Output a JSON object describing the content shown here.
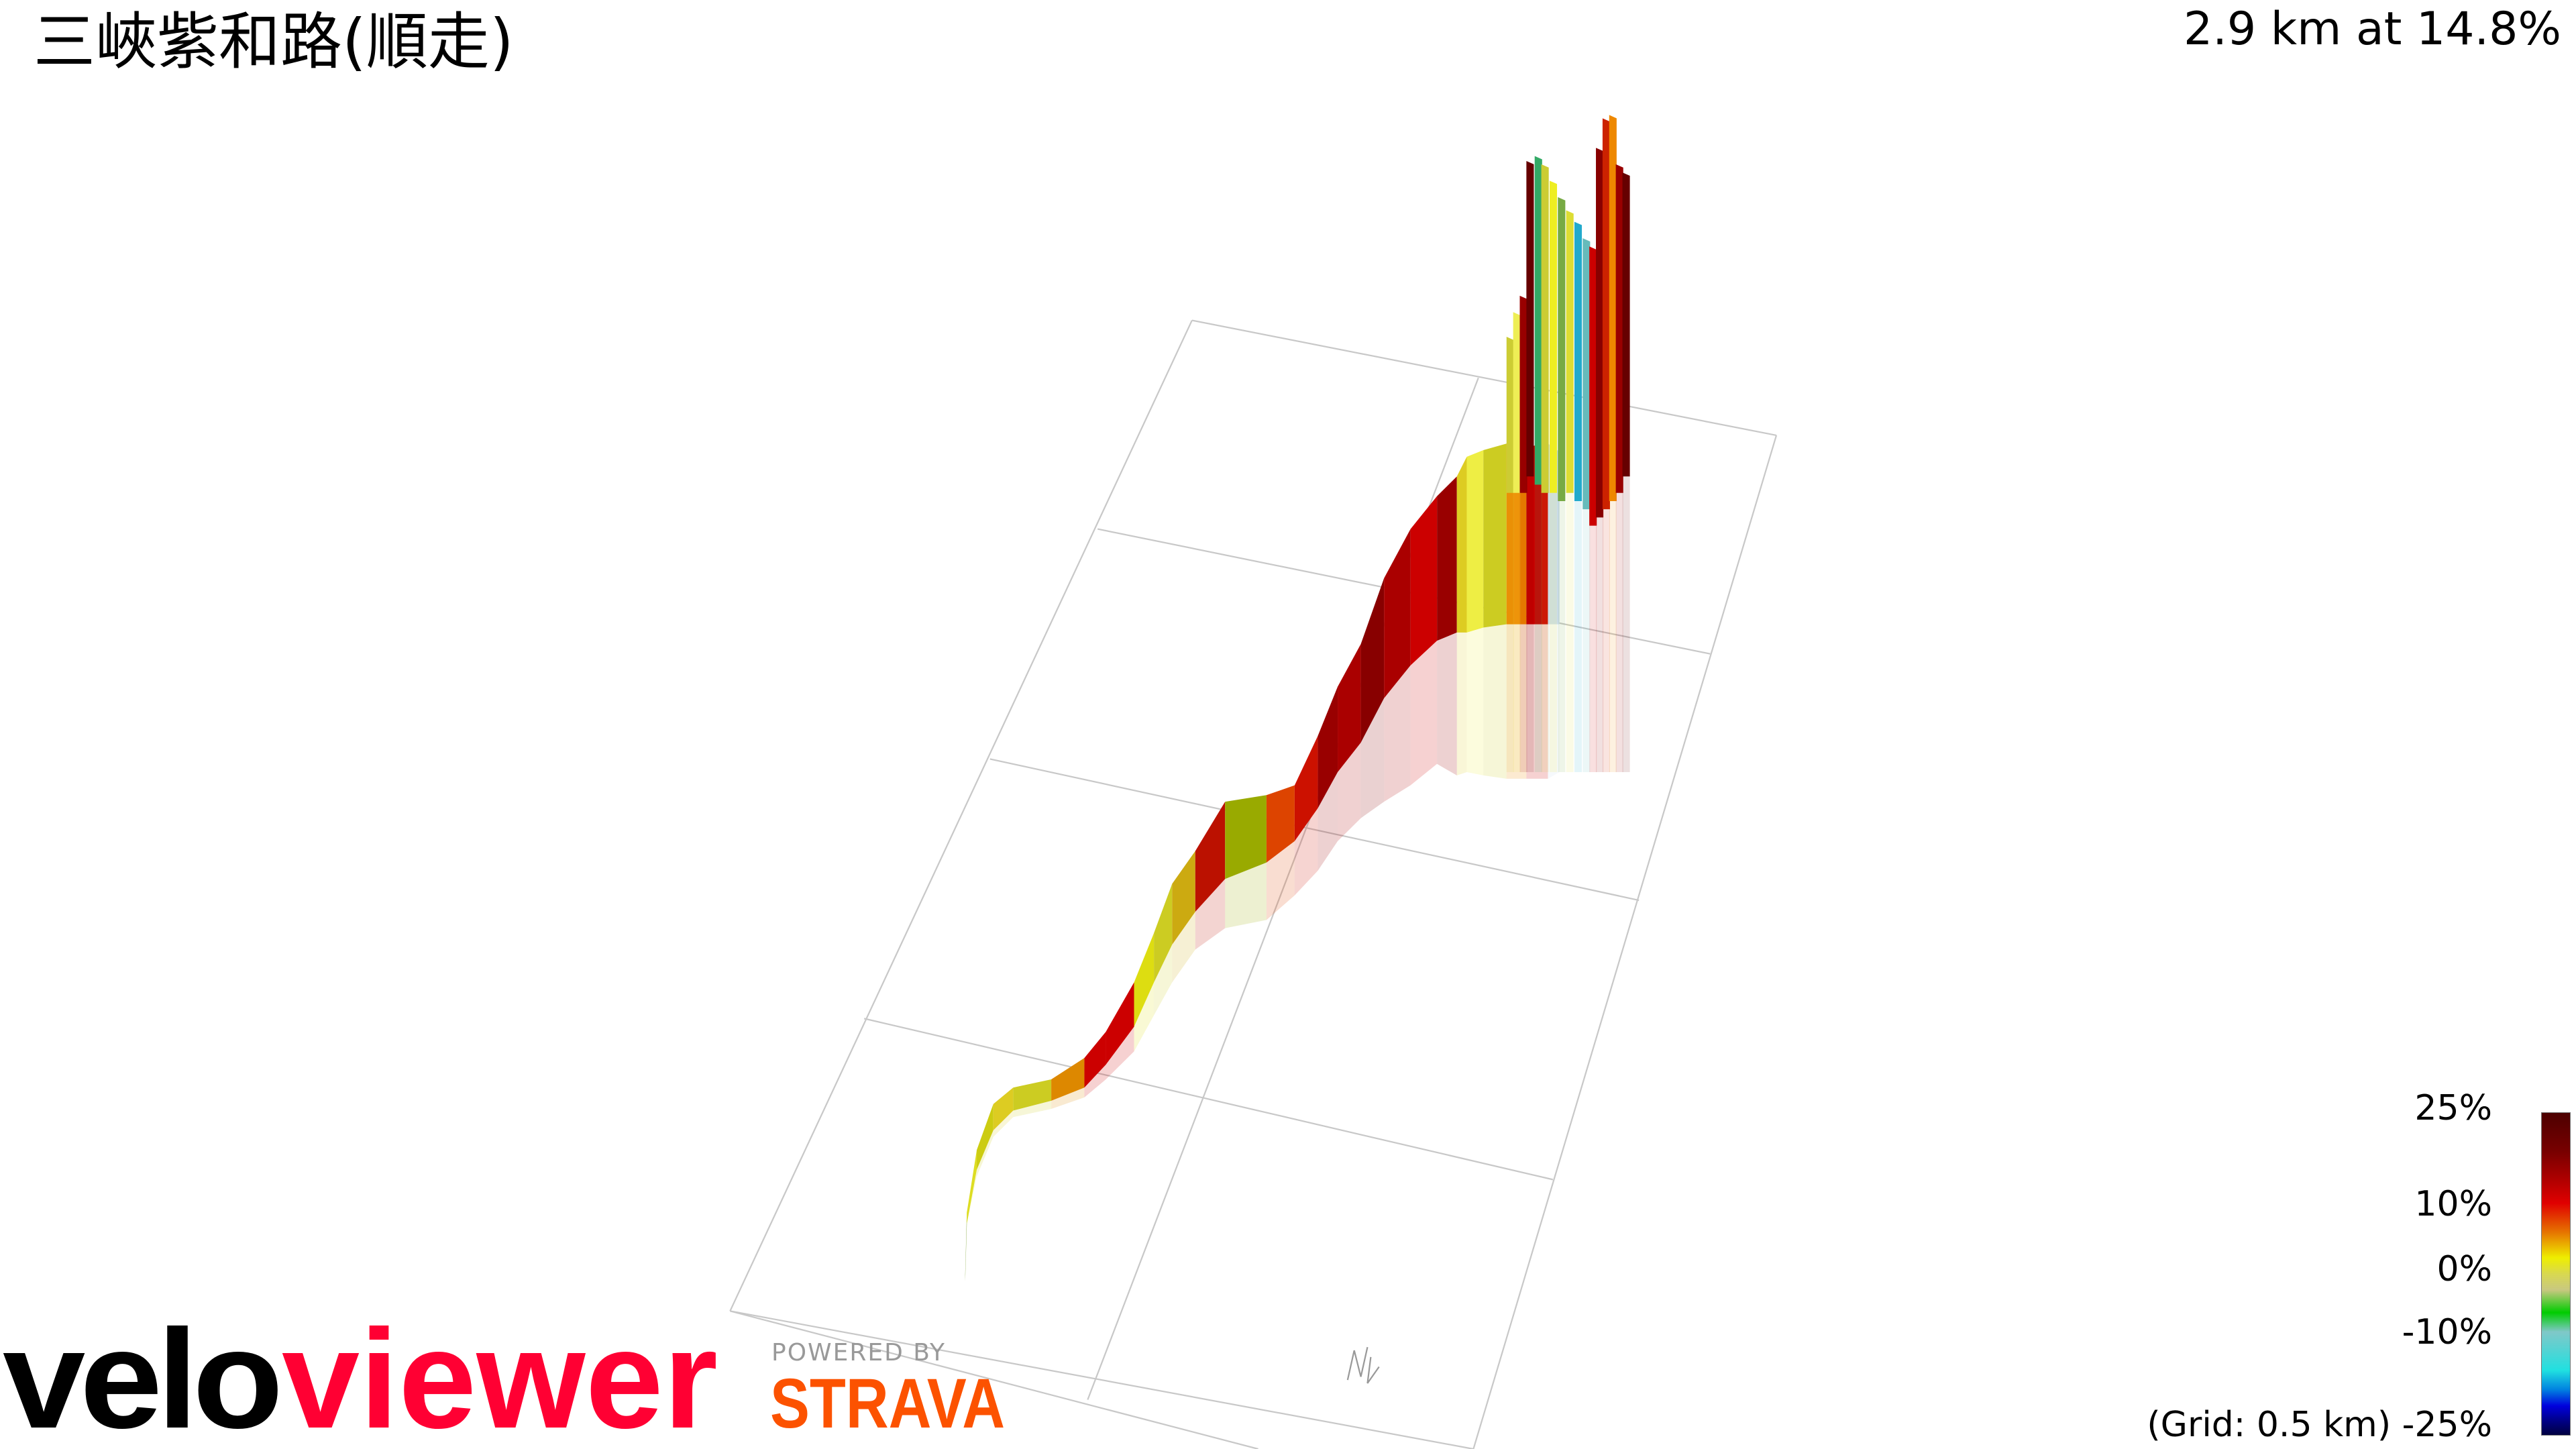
{
  "header": {
    "title": "三峽紫和路(順走)",
    "summary": "2.9 km at 14.8%"
  },
  "chart_data": {
    "type": "3d-elevation-ribbon",
    "title": "三峽紫和路(順走)",
    "distance_km": 2.9,
    "average_gradient_percent": 14.8,
    "grid_spacing": "(Grid: 0.5 km)",
    "colorscale": {
      "ticks": [
        "25%",
        "10%",
        "0%",
        "-10%",
        "-25%"
      ],
      "range": [
        -25,
        25
      ],
      "colors": [
        "#4d0000",
        "#e00000",
        "#eeee00",
        "#00cc00",
        "#20e0e0",
        "#0000dd",
        "#000040"
      ]
    },
    "compass": "N"
  },
  "branding": {
    "logo_velo": "velo",
    "logo_viewer": "viewer",
    "powered_by": "POWERED BY",
    "strava": "STRAVA",
    "velo_color": "#000000",
    "viewer_color": "#ff0033",
    "strava_color": "#fc5200"
  }
}
